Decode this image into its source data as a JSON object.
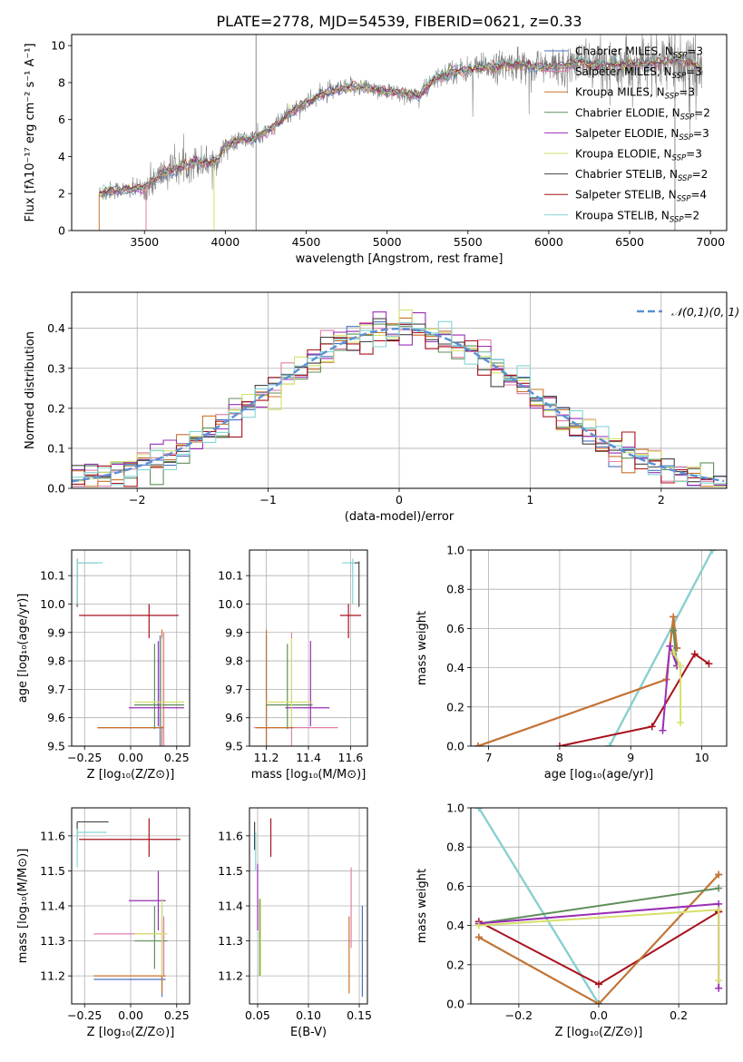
{
  "title": "PLATE=2778, MJD=54539, FIBERID=0621, z=0.33",
  "colors": {
    "Chabrier MILES": "#4a72c2",
    "Salpeter MILES": "#e37fab",
    "Kroupa MILES": "#c8742b",
    "Chabrier ELODIE": "#5f8f5a",
    "Salpeter ELODIE": "#9a2fb5",
    "Kroupa ELODIE": "#d6e06a",
    "Chabrier STELIB": "#444444",
    "Salpeter STELIB": "#a8121c",
    "Kroupa STELIB": "#83d6d6",
    "observed": "#808080",
    "normal": "#5b8fd6",
    "grid": "#b0b0b0"
  },
  "chart_data": [
    {
      "id": "spectrum",
      "type": "line",
      "xlabel": "wavelength [Angstrom, rest frame]",
      "ylabel": "Flux [fλ10⁻¹⁷ erg cm⁻² s⁻¹ A⁻¹]",
      "xlim": [
        3050,
        7100
      ],
      "ylim": [
        0,
        10.6
      ],
      "xticks": [
        3500,
        4000,
        4500,
        5000,
        5500,
        6000,
        6500,
        7000
      ],
      "yticks": [
        0,
        2,
        4,
        6,
        8,
        10
      ],
      "grid": false,
      "legend_position": "upper right",
      "legend": [
        {
          "name": "Chabrier MILES, N_SSP=3",
          "model": "Chabrier MILES"
        },
        {
          "name": "Salpeter MILES, N_SSP=3",
          "model": "Salpeter MILES"
        },
        {
          "name": "Kroupa MILES, N_SSP=3",
          "model": "Kroupa MILES"
        },
        {
          "name": "Chabrier ELODIE, N_SSP=2",
          "model": "Chabrier ELODIE"
        },
        {
          "name": "Salpeter ELODIE, N_SSP=3",
          "model": "Salpeter ELODIE"
        },
        {
          "name": "Kroupa ELODIE, N_SSP=3",
          "model": "Kroupa ELODIE"
        },
        {
          "name": "Chabrier STELIB, N_SSP=2",
          "model": "Chabrier STELIB"
        },
        {
          "name": "Salpeter STELIB, N_SSP=4",
          "model": "Salpeter STELIB"
        },
        {
          "name": "Kroupa STELIB, N_SSP=2",
          "model": "Kroupa STELIB"
        }
      ],
      "continuum": {
        "x": [
          3220,
          3300,
          3400,
          3500,
          3600,
          3700,
          3800,
          3900,
          3950,
          4000,
          4100,
          4200,
          4300,
          4400,
          4500,
          4600,
          4700,
          4800,
          4900,
          5000,
          5100,
          5200,
          5300,
          5400,
          5500,
          5600,
          5700,
          5800,
          5900,
          6000,
          6100,
          6200,
          6300,
          6400,
          6500,
          6600,
          6700,
          6800,
          6900,
          6950
        ],
        "y": [
          2.0,
          2.2,
          2.2,
          2.3,
          3.0,
          3.4,
          3.7,
          3.7,
          3.8,
          4.6,
          4.9,
          5.0,
          5.6,
          6.4,
          6.9,
          7.4,
          7.6,
          7.8,
          7.7,
          7.5,
          7.4,
          7.3,
          8.2,
          8.6,
          8.7,
          8.8,
          8.9,
          9.0,
          8.9,
          8.8,
          8.9,
          9.1,
          8.9,
          9.0,
          9.0,
          9.0,
          9.1,
          9.2,
          9.0,
          8.6
        ]
      },
      "vertical_lines_x": [
        4190,
        6780
      ]
    },
    {
      "id": "residuals",
      "type": "histogram",
      "xlabel": "(data-model)/error",
      "ylabel": "Normed distribution",
      "xlim": [
        -2.5,
        2.5
      ],
      "ylim": [
        0,
        0.49
      ],
      "xticks": [
        -2,
        -1,
        0,
        1,
        2
      ],
      "yticks": [
        0.0,
        0.1,
        0.2,
        0.3,
        0.4
      ],
      "grid": true,
      "legend_position": "upper right",
      "reference_curve": {
        "name": "𝒩(0,1)",
        "mean": 0,
        "sigma": 1
      },
      "bin_width": 0.1
    },
    {
      "id": "age-vs-Z",
      "type": "errorbar",
      "xlabel": "Z [log₁₀(Z/Z⊙)]",
      "ylabel": "age  [log₁₀(age/yr)]",
      "xlim": [
        -0.32,
        0.32
      ],
      "ylim": [
        9.5,
        10.19
      ],
      "xticks": [
        -0.25,
        0.0,
        0.25
      ],
      "yticks": [
        9.5,
        9.6,
        9.7,
        9.8,
        9.9,
        10.0,
        10.1
      ],
      "grid": true,
      "points": [
        {
          "model": "Chabrier MILES",
          "x": 0.16,
          "xlo": -0.18,
          "xhi": 0.18,
          "y": 9.565,
          "ylo": 9.5,
          "yhi": 9.89
        },
        {
          "model": "Salpeter MILES",
          "x": 0.18,
          "xlo": -0.18,
          "xhi": 0.18,
          "y": 9.565,
          "ylo": 9.5,
          "yhi": 9.9
        },
        {
          "model": "Kroupa MILES",
          "x": 0.17,
          "xlo": -0.18,
          "xhi": 0.18,
          "y": 9.565,
          "ylo": 9.5,
          "yhi": 9.91
        },
        {
          "model": "Chabrier ELODIE",
          "x": 0.13,
          "xlo": 0.02,
          "xhi": 0.29,
          "y": 9.645,
          "ylo": 9.56,
          "yhi": 9.86
        },
        {
          "model": "Salpeter ELODIE",
          "x": 0.15,
          "xlo": -0.01,
          "xhi": 0.29,
          "y": 9.635,
          "ylo": 9.57,
          "yhi": 9.87
        },
        {
          "model": "Kroupa ELODIE",
          "x": 0.17,
          "xlo": 0.02,
          "xhi": 0.29,
          "y": 9.655,
          "ylo": 9.57,
          "yhi": 9.88
        },
        {
          "model": "Chabrier STELIB",
          "x": -0.29,
          "xlo": -0.29,
          "xhi": -0.18,
          "y": 10.145,
          "ylo": 9.99,
          "yhi": 10.16
        },
        {
          "model": "Salpeter STELIB",
          "x": 0.1,
          "xlo": -0.28,
          "xhi": 0.26,
          "y": 9.96,
          "ylo": 9.88,
          "yhi": 10.0
        },
        {
          "model": "Kroupa STELIB",
          "x": -0.29,
          "xlo": -0.29,
          "xhi": -0.15,
          "y": 10.145,
          "ylo": 10.0,
          "yhi": 10.16
        }
      ]
    },
    {
      "id": "age-vs-mass",
      "type": "errorbar",
      "xlabel": "mass [log₁₀(M/M⊙)]",
      "ylabel": "",
      "xlim": [
        11.12,
        11.68
      ],
      "ylim": [
        9.5,
        10.19
      ],
      "xticks": [
        11.2,
        11.4,
        11.6
      ],
      "yticks": [
        9.5,
        9.6,
        9.7,
        9.8,
        9.9,
        10.0,
        10.1
      ],
      "grid": true,
      "points": [
        {
          "model": "Chabrier MILES",
          "x": 11.2,
          "xlo": 11.15,
          "xhi": 11.33,
          "y": 9.565,
          "ylo": 9.5,
          "yhi": 9.89
        },
        {
          "model": "Salpeter MILES",
          "x": 11.32,
          "xlo": 11.14,
          "xhi": 11.54,
          "y": 9.565,
          "ylo": 9.5,
          "yhi": 9.9
        },
        {
          "model": "Kroupa MILES",
          "x": 11.2,
          "xlo": 11.15,
          "xhi": 11.33,
          "y": 9.565,
          "ylo": 9.5,
          "yhi": 9.91
        },
        {
          "model": "Chabrier ELODIE",
          "x": 11.3,
          "xlo": 11.2,
          "xhi": 11.42,
          "y": 9.645,
          "ylo": 9.56,
          "yhi": 9.86
        },
        {
          "model": "Salpeter ELODIE",
          "x": 11.41,
          "xlo": 11.29,
          "xhi": 11.5,
          "y": 9.635,
          "ylo": 9.57,
          "yhi": 9.87
        },
        {
          "model": "Kroupa ELODIE",
          "x": 11.32,
          "xlo": 11.2,
          "xhi": 11.42,
          "y": 9.655,
          "ylo": 9.57,
          "yhi": 9.88
        },
        {
          "model": "Chabrier STELIB",
          "x": 11.64,
          "xlo": 11.6,
          "xhi": 11.64,
          "y": 10.145,
          "ylo": 9.99,
          "yhi": 10.15
        },
        {
          "model": "Salpeter STELIB",
          "x": 11.59,
          "xlo": 11.55,
          "xhi": 11.65,
          "y": 9.96,
          "ylo": 9.88,
          "yhi": 10.0
        },
        {
          "model": "Kroupa STELIB",
          "x": 11.61,
          "xlo": 11.56,
          "xhi": 11.62,
          "y": 10.145,
          "ylo": 10.0,
          "yhi": 10.16
        }
      ]
    },
    {
      "id": "weight-vs-age",
      "type": "line",
      "xlabel": "age  [log₁₀(age/yr)]",
      "ylabel": "mass weight",
      "xlim": [
        6.75,
        10.35
      ],
      "ylim": [
        0,
        1.0
      ],
      "xticks": [
        7,
        8,
        9,
        10
      ],
      "yticks": [
        0.0,
        0.2,
        0.4,
        0.6,
        0.8,
        1.0
      ],
      "grid": true,
      "series": [
        {
          "model": "Chabrier STELIB",
          "x": [
            8.7,
            10.15
          ],
          "y": [
            0.0,
            1.0
          ]
        },
        {
          "model": "Kroupa STELIB",
          "x": [
            8.7,
            10.15
          ],
          "y": [
            0.0,
            1.0
          ]
        },
        {
          "model": "Salpeter STELIB",
          "x": [
            8.0,
            9.3,
            9.9,
            10.1
          ],
          "y": [
            0.0,
            0.1,
            0.47,
            0.42
          ]
        },
        {
          "model": "Chabrier MILES",
          "x": [
            6.85,
            9.5,
            9.6,
            9.65
          ],
          "y": [
            0.0,
            0.34,
            0.66,
            0.5
          ]
        },
        {
          "model": "Salpeter MILES",
          "x": [
            6.85,
            9.5,
            9.6,
            9.65
          ],
          "y": [
            0.0,
            0.34,
            0.66,
            0.5
          ]
        },
        {
          "model": "Kroupa MILES",
          "x": [
            6.85,
            9.5,
            9.6,
            9.65
          ],
          "y": [
            0.0,
            0.34,
            0.66,
            0.5
          ]
        },
        {
          "model": "Chabrier ELODIE",
          "x": [
            9.6,
            9.65
          ],
          "y": [
            0.59,
            0.41
          ]
        },
        {
          "model": "Salpeter ELODIE",
          "x": [
            9.45,
            9.55,
            9.65
          ],
          "y": [
            0.08,
            0.51,
            0.41
          ]
        },
        {
          "model": "Kroupa ELODIE",
          "x": [
            9.6,
            9.7,
            9.7
          ],
          "y": [
            0.48,
            0.41,
            0.12
          ]
        }
      ]
    },
    {
      "id": "mass-vs-Z",
      "type": "errorbar",
      "xlabel": "Z [log₁₀(Z/Z⊙)]",
      "ylabel": "mass [log₁₀(M/M⊙)]",
      "xlim": [
        -0.32,
        0.32
      ],
      "ylim": [
        11.12,
        11.68
      ],
      "xticks": [
        -0.25,
        0.0,
        0.25
      ],
      "yticks": [
        11.2,
        11.3,
        11.4,
        11.5,
        11.6
      ],
      "grid": true,
      "points": [
        {
          "model": "Chabrier MILES",
          "x": 0.17,
          "xlo": -0.2,
          "xhi": 0.19,
          "y": 11.19,
          "ylo": 11.14,
          "yhi": 11.4
        },
        {
          "model": "Salpeter MILES",
          "x": 0.18,
          "xlo": -0.2,
          "xhi": 0.19,
          "y": 11.32,
          "ylo": 11.2,
          "yhi": 11.37
        },
        {
          "model": "Kroupa MILES",
          "x": 0.17,
          "xlo": -0.2,
          "xhi": 0.19,
          "y": 11.2,
          "ylo": 11.15,
          "yhi": 11.36
        },
        {
          "model": "Chabrier ELODIE",
          "x": 0.13,
          "xlo": 0.02,
          "xhi": 0.2,
          "y": 11.3,
          "ylo": 11.22,
          "yhi": 11.4
        },
        {
          "model": "Salpeter ELODIE",
          "x": 0.15,
          "xlo": -0.01,
          "xhi": 0.19,
          "y": 11.415,
          "ylo": 11.33,
          "yhi": 11.5
        },
        {
          "model": "Kroupa ELODIE",
          "x": 0.17,
          "xlo": 0.02,
          "xhi": 0.2,
          "y": 11.32,
          "ylo": 11.2,
          "yhi": 11.42
        },
        {
          "model": "Chabrier STELIB",
          "x": -0.29,
          "xlo": -0.29,
          "xhi": -0.12,
          "y": 11.64,
          "ylo": 11.58,
          "yhi": 11.64
        },
        {
          "model": "Salpeter STELIB",
          "x": 0.1,
          "xlo": -0.28,
          "xhi": 0.27,
          "y": 11.59,
          "ylo": 11.54,
          "yhi": 11.65
        },
        {
          "model": "Kroupa STELIB",
          "x": -0.29,
          "xlo": -0.29,
          "xhi": -0.13,
          "y": 11.61,
          "ylo": 11.51,
          "yhi": 11.62
        }
      ]
    },
    {
      "id": "mass-vs-EBV",
      "type": "errorbar",
      "xlabel": "E(B-V)",
      "ylabel": "",
      "xlim": [
        0.042,
        0.158
      ],
      "ylim": [
        11.12,
        11.68
      ],
      "xticks": [
        0.05,
        0.1,
        0.15
      ],
      "yticks": [
        11.2,
        11.3,
        11.4,
        11.5,
        11.6
      ],
      "grid": true,
      "points": [
        {
          "model": "Chabrier MILES",
          "x": 0.153,
          "y": 11.2,
          "ylo": 11.14,
          "yhi": 11.4
        },
        {
          "model": "Salpeter MILES",
          "x": 0.142,
          "y": 11.4,
          "ylo": 11.28,
          "yhi": 11.51
        },
        {
          "model": "Kroupa MILES",
          "x": 0.14,
          "y": 11.3,
          "ylo": 11.15,
          "yhi": 11.37
        },
        {
          "model": "Chabrier ELODIE",
          "x": 0.052,
          "y": 11.3,
          "ylo": 11.2,
          "yhi": 11.42
        },
        {
          "model": "Salpeter ELODIE",
          "x": 0.05,
          "y": 11.42,
          "ylo": 11.33,
          "yhi": 11.52
        },
        {
          "model": "Kroupa ELODIE",
          "x": 0.053,
          "y": 11.32,
          "ylo": 11.2,
          "yhi": 11.42
        },
        {
          "model": "Chabrier STELIB",
          "x": 0.047,
          "y": 11.6,
          "ylo": 11.56,
          "yhi": 11.64
        },
        {
          "model": "Salpeter STELIB",
          "x": 0.063,
          "y": 11.6,
          "ylo": 11.54,
          "yhi": 11.65
        },
        {
          "model": "Kroupa STELIB",
          "x": 0.048,
          "y": 11.58,
          "ylo": 11.5,
          "yhi": 11.61
        }
      ]
    },
    {
      "id": "weight-vs-Z",
      "type": "line",
      "xlabel": "Z [log₁₀(Z/Z⊙)]",
      "ylabel": "mass weight",
      "xlim": [
        -0.32,
        0.32
      ],
      "ylim": [
        0,
        1.0
      ],
      "xticks": [
        -0.2,
        0.0,
        0.2
      ],
      "yticks": [
        0.0,
        0.2,
        0.4,
        0.6,
        0.8,
        1.0
      ],
      "grid": true,
      "series": [
        {
          "model": "Chabrier STELIB",
          "x": [
            -0.3,
            0.0
          ],
          "y": [
            1.0,
            0.0
          ]
        },
        {
          "model": "Kroupa STELIB",
          "x": [
            -0.3,
            0.0
          ],
          "y": [
            1.0,
            0.0
          ]
        },
        {
          "model": "Salpeter STELIB",
          "x": [
            -0.3,
            0.0,
            0.3,
            0.3
          ],
          "y": [
            0.42,
            0.1,
            0.47,
            0.47
          ]
        },
        {
          "model": "Chabrier MILES",
          "x": [
            -0.3,
            0.0,
            0.3
          ],
          "y": [
            0.34,
            0.0,
            0.66
          ]
        },
        {
          "model": "Kroupa MILES",
          "x": [
            -0.3,
            0.0,
            0.3
          ],
          "y": [
            0.34,
            0.0,
            0.66
          ]
        },
        {
          "model": "Chabrier ELODIE",
          "x": [
            -0.3,
            0.3
          ],
          "y": [
            0.41,
            0.59
          ]
        },
        {
          "model": "Salpeter ELODIE",
          "x": [
            -0.3,
            0.3,
            0.3
          ],
          "y": [
            0.41,
            0.51,
            0.08
          ]
        },
        {
          "model": "Kroupa ELODIE",
          "x": [
            -0.3,
            0.3,
            0.3
          ],
          "y": [
            0.4,
            0.48,
            0.12
          ]
        }
      ]
    }
  ]
}
